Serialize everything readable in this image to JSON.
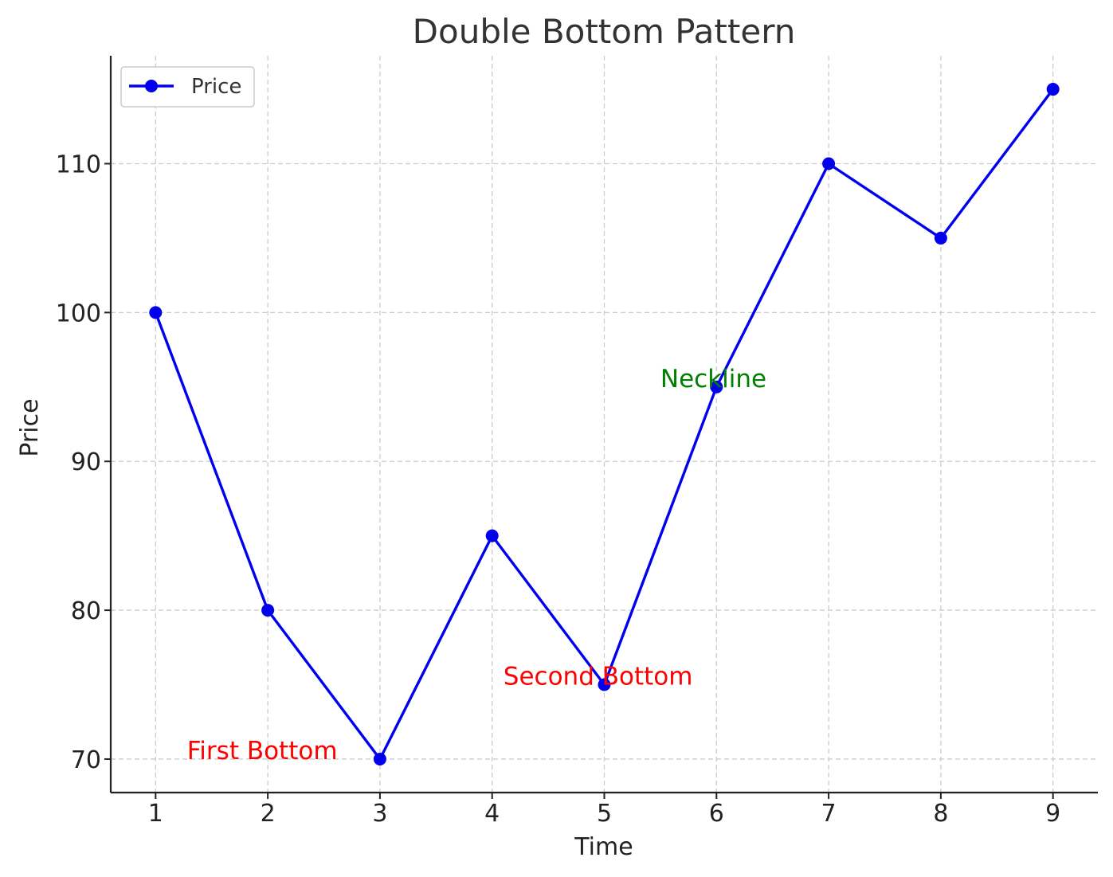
{
  "chart_data": {
    "type": "line",
    "title": "Double Bottom Pattern",
    "xlabel": "Time",
    "ylabel": "Price",
    "x": [
      1,
      2,
      3,
      4,
      5,
      6,
      7,
      8,
      9
    ],
    "series": [
      {
        "name": "Price",
        "values": [
          100,
          80,
          70,
          85,
          75,
          95,
          110,
          105,
          115
        ],
        "color": "#0000ee"
      }
    ],
    "xlim": [
      0.6,
      9.4
    ],
    "ylim": [
      67.75,
      117.25
    ],
    "xticks": [
      1,
      2,
      3,
      4,
      5,
      6,
      7,
      8,
      9
    ],
    "yticks": [
      70,
      80,
      90,
      100,
      110
    ],
    "grid": true,
    "legend": {
      "placement": "top-left",
      "entries": [
        "Price"
      ]
    },
    "annotations": [
      {
        "text": "First Bottom",
        "x": 1.28,
        "y": 70,
        "color": "#ff0000"
      },
      {
        "text": "Second Bottom",
        "x": 4.1,
        "y": 75,
        "color": "#ff0000"
      },
      {
        "text": "Neckline",
        "x": 5.5,
        "y": 95,
        "color": "#008000"
      }
    ]
  }
}
